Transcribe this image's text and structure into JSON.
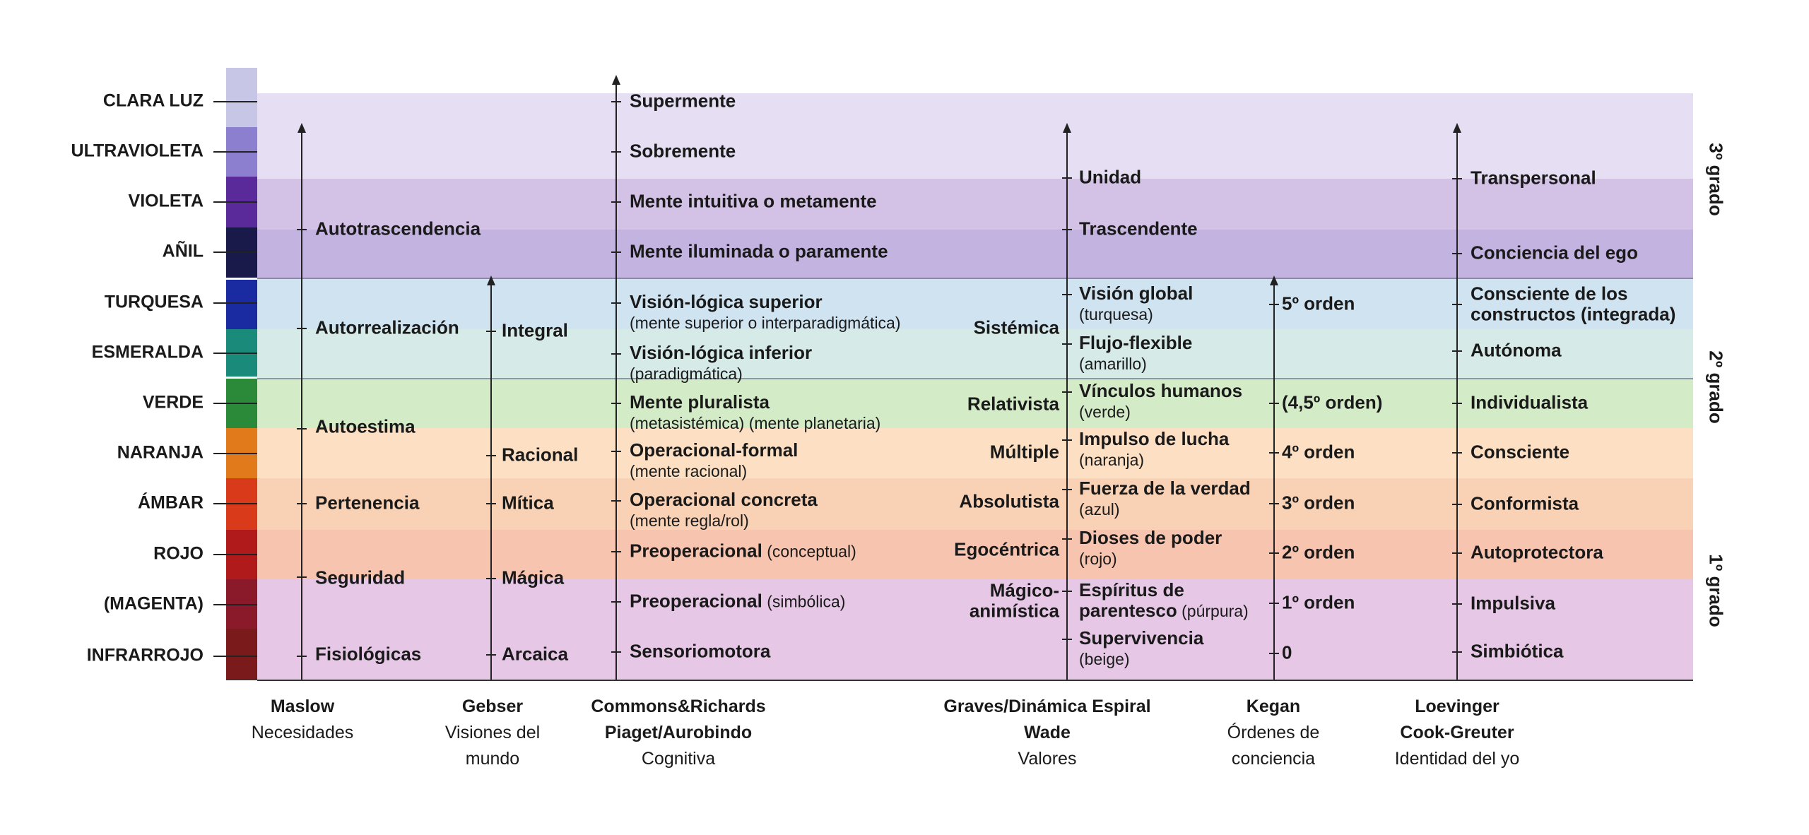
{
  "levels": [
    "CLARA LUZ",
    "ULTRAVIOLETA",
    "VIOLETA",
    "AÑIL",
    "TURQUESA",
    "ESMERALDA",
    "VERDE",
    "NARANJA",
    "ÁMBAR",
    "ROJO",
    "(MAGENTA)",
    "INFRARROJO"
  ],
  "band_colors": [
    "#e6def2",
    "#e6def2",
    "#d4c2e6",
    "#c2b3e0",
    "#cfe3f0",
    "#d6ebe8",
    "#d4ebc8",
    "#fde0c4",
    "#f9d2b6",
    "#f7c4b0",
    "#e6c8e6",
    "#e6c8e6"
  ],
  "spectrum_colors": [
    "#c8c6e6",
    "#8c7fd0",
    "#5a2a9a",
    "#1a1a4a",
    "#1a2aa0",
    "#1a8a7a",
    "#2a8a3a",
    "#e07a1a",
    "#d83a1a",
    "#b01a1a",
    "#8a1a2a",
    "#7a1a1a"
  ],
  "columns": {
    "maslow": {
      "items": [
        "Autotrascendencia",
        "Autorrealización",
        "Autoestima",
        "Pertenencia",
        "Seguridad",
        "Fisiológicas"
      ],
      "footer_bold": "Maslow",
      "footer_lines": [
        "Necesidades"
      ]
    },
    "gebser": {
      "items": [
        "Integral",
        "Racional",
        "Mítica",
        "Mágica",
        "Arcaica"
      ],
      "footer_bold": "Gebser",
      "footer_lines": [
        "Visiones del",
        "mundo"
      ]
    },
    "commons": {
      "items": [
        {
          "main": "Supermente",
          "sub": ""
        },
        {
          "main": "Sobremente",
          "sub": ""
        },
        {
          "main": "Mente intuitiva o metamente",
          "sub": ""
        },
        {
          "main": "Mente iluminada o paramente",
          "sub": ""
        },
        {
          "main": "Visión-lógica superior",
          "sub": "(mente superior o interparadigmática)"
        },
        {
          "main": "Visión-lógica inferior",
          "sub": "(paradigmática)"
        },
        {
          "main": "Mente pluralista",
          "sub": "(metasistémica) (mente planetaria)"
        },
        {
          "main": "Operacional-formal",
          "sub": "(mente racional)"
        },
        {
          "main": "Operacional concreta",
          "sub": "(mente regla/rol)"
        },
        {
          "main": "Preoperacional",
          "inline": " (conceptual)"
        },
        {
          "main": "Preoperacional",
          "inline": " (simbólica)"
        },
        {
          "main": "Sensoriomotora",
          "sub": ""
        }
      ],
      "footer_bold": "Commons&Richards",
      "footer_bold2": "Piaget/Aurobindo",
      "footer_lines": [
        "Cognitiva"
      ]
    },
    "graves_left": {
      "items": [
        "Sistémica",
        "Relativista",
        "Múltiple",
        "Absolutista",
        "Egocéntrica",
        "Mágico-",
        "animística"
      ]
    },
    "graves_right": {
      "items": [
        {
          "main": "Unidad",
          "sub": ""
        },
        {
          "main": "Trascendente",
          "sub": ""
        },
        {
          "main": "Visión global",
          "sub": "(turquesa)"
        },
        {
          "main": "Flujo-flexible",
          "sub": "(amarillo)"
        },
        {
          "main": "Vínculos humanos",
          "sub": "(verde)"
        },
        {
          "main": "Impulso de lucha",
          "sub": "(naranja)"
        },
        {
          "main": "Fuerza de la verdad",
          "sub": "(azul)"
        },
        {
          "main": "Dioses de poder",
          "sub": "(rojo)"
        },
        {
          "main": "Espíritus de",
          "sub2": "parentesco",
          "sub2_tail": " (púrpura)"
        },
        {
          "main": "Supervivencia",
          "sub": "(beige)"
        }
      ],
      "footer_bold": "Graves/Dinámica Espiral",
      "footer_bold2": "Wade",
      "footer_lines": [
        "Valores"
      ]
    },
    "kegan": {
      "items": [
        "5º orden",
        "(4,5º orden)",
        "4º orden",
        "3º orden",
        "2º orden",
        "1º orden",
        "0"
      ],
      "footer_bold": "Kegan",
      "footer_lines": [
        "Órdenes de",
        "conciencia"
      ]
    },
    "loevinger": {
      "items": [
        "Transpersonal",
        "Conciencia del ego",
        "Consciente de los",
        "constructos (integrada)",
        "Autónoma",
        "Individualista",
        "Consciente",
        "Conformista",
        "Autoprotectora",
        "Impulsiva",
        "Simbiótica"
      ],
      "footer_bold": "Loevinger",
      "footer_bold2": "Cook-Greuter",
      "footer_lines": [
        "Identidad del yo"
      ]
    }
  },
  "grades": [
    "3º grado",
    "2º grado",
    "1º grado"
  ]
}
